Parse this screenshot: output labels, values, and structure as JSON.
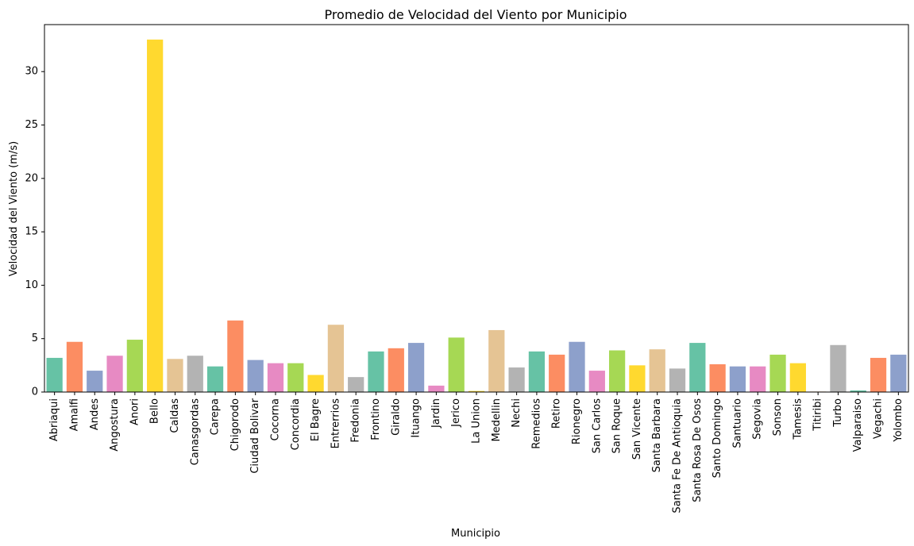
{
  "chart_data": {
    "type": "bar",
    "title": "Promedio de Velocidad del Viento por Municipio",
    "xlabel": "Municipio",
    "ylabel": "Velocidad del Viento (m/s)",
    "ylim": [
      0,
      34.4
    ],
    "yticks": [
      0,
      5,
      10,
      15,
      20,
      25,
      30
    ],
    "grid": false,
    "legend": "none",
    "categories": [
      "Abriaqui",
      "Amalfi",
      "Andes",
      "Angostura",
      "Anori",
      "Bello",
      "Caldas",
      "Canasgordas",
      "Carepa",
      "Chigorodo",
      "Ciudad Bolivar",
      "Cocorna",
      "Concordia",
      "El Bagre",
      "Entrerrios",
      "Fredonia",
      "Frontino",
      "Giraldo",
      "Ituango",
      "Jardin",
      "Jerico",
      "La Union",
      "Medellin",
      "Nechi",
      "Remedios",
      "Retiro",
      "Rionegro",
      "San Carlos",
      "San Roque",
      "San Vicente",
      "Santa Barbara",
      "Santa Fe De Antioquia",
      "Santa Rosa De Osos",
      "Santo Domingo",
      "Santuario",
      "Segovia",
      "Sonson",
      "Tamesis",
      "Titiribi",
      "Turbo",
      "Valparaiso",
      "Vegachi",
      "Yolombo"
    ],
    "values": [
      3.2,
      4.7,
      2.0,
      3.4,
      4.9,
      33.0,
      3.1,
      3.4,
      2.4,
      6.7,
      3.0,
      2.7,
      2.7,
      1.6,
      6.3,
      1.4,
      3.8,
      4.1,
      4.6,
      0.6,
      5.1,
      0.1,
      5.8,
      2.3,
      3.8,
      3.5,
      4.7,
      2.0,
      3.9,
      2.5,
      4.0,
      2.2,
      4.6,
      2.6,
      2.4,
      2.4,
      3.5,
      2.7,
      0.05,
      4.4,
      0.15,
      3.2,
      3.5
    ],
    "palette": [
      "#66c2a5",
      "#fc8d62",
      "#8da0cb",
      "#e78ac3",
      "#a6d854",
      "#ffd92f",
      "#e5c494",
      "#b3b3b3"
    ]
  }
}
